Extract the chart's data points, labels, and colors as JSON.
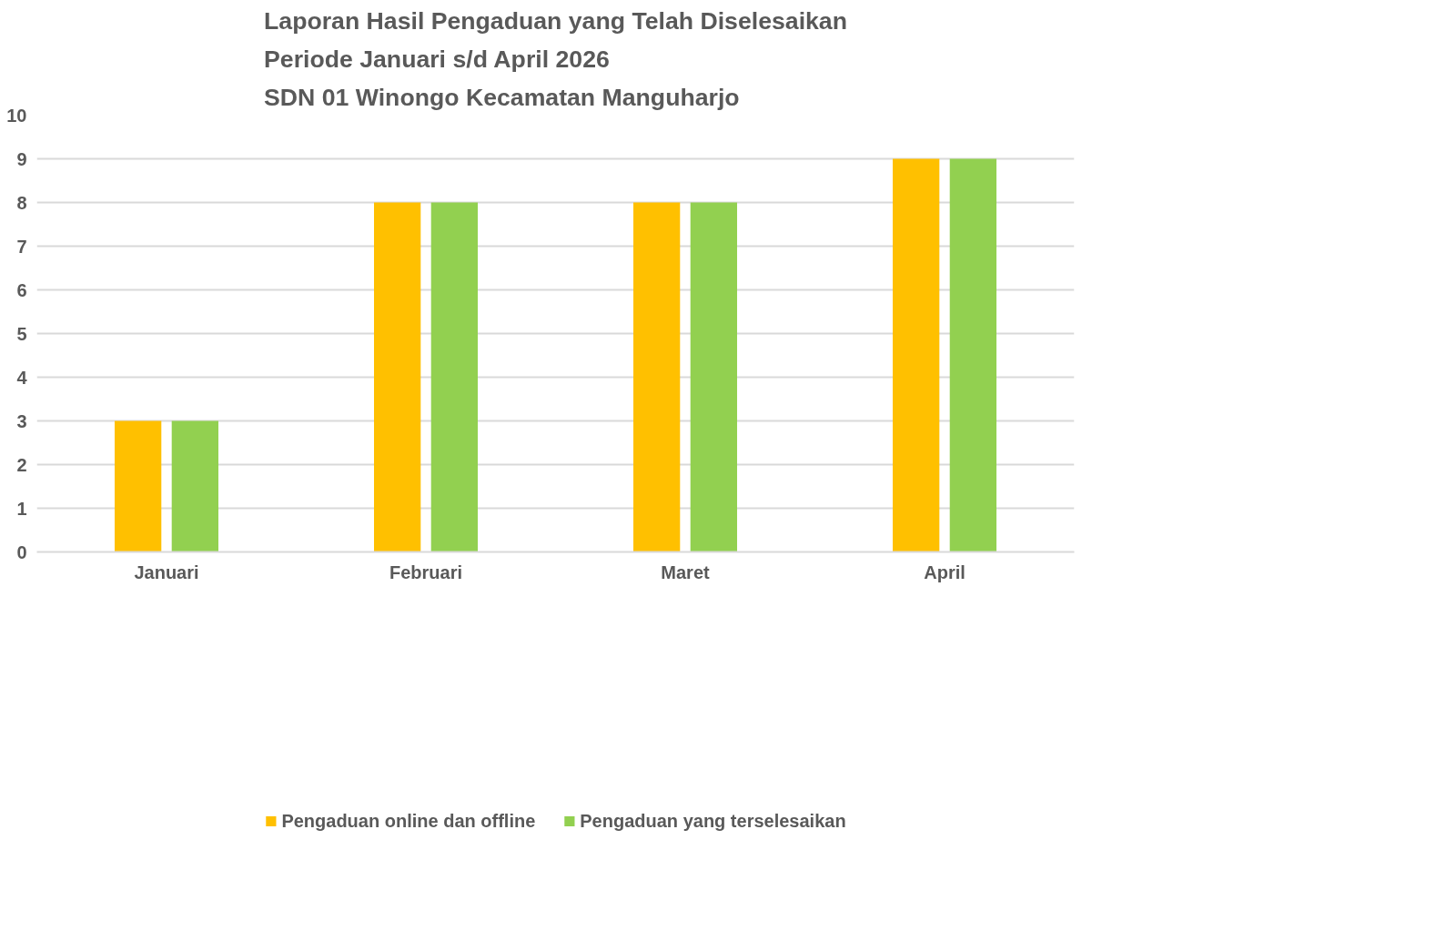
{
  "chart_data": {
    "type": "bar",
    "title": "Laporan Hasil Pengaduan yang Telah Diselesaikan\nPeriode Januari s/d April 2026\nSDN 01 Winongo Kecamatan Manguharjo",
    "categories": [
      "Januari",
      "Februari",
      "Maret",
      "April"
    ],
    "series": [
      {
        "name": "Pengaduan online dan offline",
        "color": "#ffc000",
        "values": [
          3,
          8,
          8,
          9
        ]
      },
      {
        "name": "Pengaduan yang terselesaikan",
        "color": "#92d050",
        "values": [
          3,
          8,
          8,
          9
        ]
      }
    ],
    "ylim": [
      0,
      10
    ],
    "yticks": [
      0,
      1,
      2,
      3,
      4,
      5,
      6,
      7,
      8,
      9,
      10
    ],
    "grid": "y",
    "legend": "bottom"
  }
}
